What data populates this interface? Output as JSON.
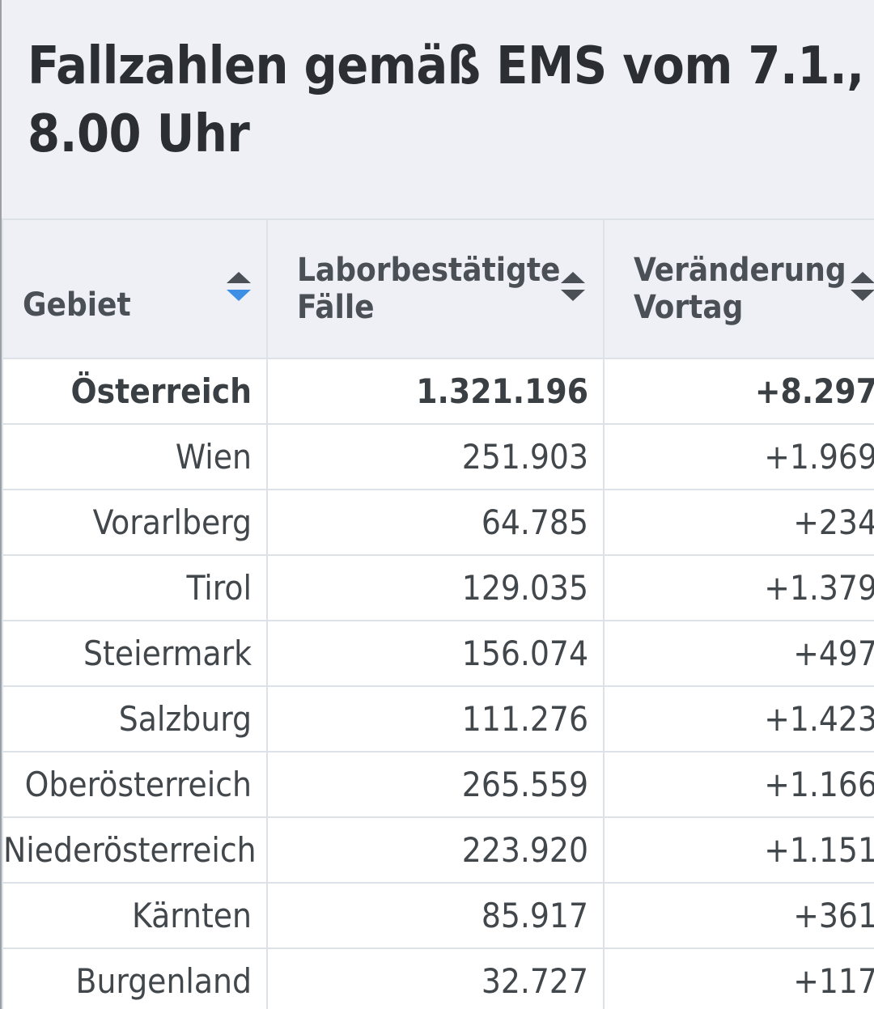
{
  "title": "Fallzahlen gemäß EMS vom 7.1., 8.00 Uhr",
  "table": {
    "headers": {
      "region": "Gebiet",
      "cases": "Laborbestätigte Fälle",
      "change": "Veränderung Vortag"
    },
    "sorted_column": "region",
    "rows": [
      {
        "region": "Österreich",
        "cases": "1.321.196",
        "change": "+8.297"
      },
      {
        "region": "Wien",
        "cases": "251.903",
        "change": "+1.969"
      },
      {
        "region": "Vorarlberg",
        "cases": "64.785",
        "change": "+234"
      },
      {
        "region": "Tirol",
        "cases": "129.035",
        "change": "+1.379"
      },
      {
        "region": "Steiermark",
        "cases": "156.074",
        "change": "+497"
      },
      {
        "region": "Salzburg",
        "cases": "111.276",
        "change": "+1.423"
      },
      {
        "region": "Oberösterreich",
        "cases": "265.559",
        "change": "+1.166"
      },
      {
        "region": "Niederösterreich",
        "cases": "223.920",
        "change": "+1.151"
      },
      {
        "region": "Kärnten",
        "cases": "85.917",
        "change": "+361"
      },
      {
        "region": "Burgenland",
        "cases": "32.727",
        "change": "+117"
      }
    ]
  },
  "colors": {
    "header_bg": "#eef0f5",
    "sort_active": "#3d8fe6"
  }
}
